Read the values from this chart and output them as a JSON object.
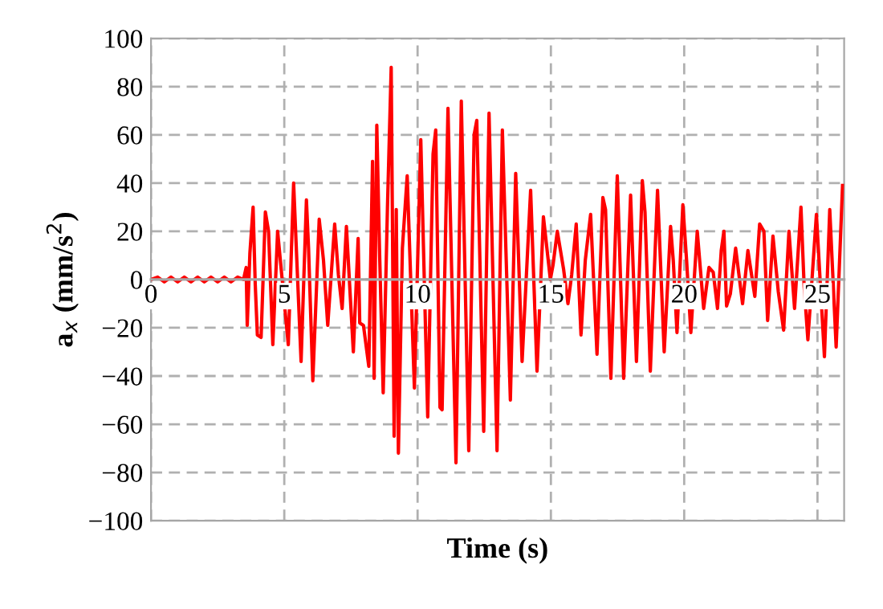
{
  "chart_data": {
    "type": "line",
    "xlabel": "Time (s)",
    "ylabel": "a$_{x}$ (mm/s$^{2}$)",
    "xlim": [
      0,
      26
    ],
    "ylim": [
      -100,
      100
    ],
    "xticks": [
      0,
      5,
      10,
      15,
      20,
      25
    ],
    "yticks": [
      {
        "value": -100,
        "label": "−100"
      },
      {
        "value": -80,
        "label": "−80"
      },
      {
        "value": -60,
        "label": "−60"
      },
      {
        "value": -40,
        "label": "−40"
      },
      {
        "value": -20,
        "label": "−20"
      },
      0,
      20,
      40,
      60,
      80,
      100
    ],
    "grid": true,
    "marker": "none",
    "line_style": "solid",
    "series": [
      {
        "color": "#ff0000",
        "x": [
          0,
          0.25,
          0.5,
          0.75,
          1.0,
          1.25,
          1.5,
          1.75,
          2.0,
          2.25,
          2.5,
          2.75,
          3.0,
          3.25,
          3.47,
          3.57,
          3.61,
          3.71,
          3.83,
          3.91,
          3.99,
          4.13,
          4.29,
          4.41,
          4.57,
          4.75,
          5.15,
          5.35,
          5.47,
          5.63,
          5.83,
          5.91,
          6.07,
          6.31,
          6.47,
          6.63,
          6.89,
          7.03,
          7.17,
          7.33,
          7.59,
          7.77,
          7.83,
          7.97,
          8.17,
          8.31,
          8.37,
          8.47,
          8.57,
          8.71,
          8.87,
          9.01,
          9.12,
          9.2,
          9.28,
          9.43,
          9.61,
          9.88,
          10.12,
          10.38,
          10.58,
          10.68,
          10.84,
          10.92,
          11.14,
          11.44,
          11.64,
          11.92,
          12.12,
          12.22,
          12.48,
          12.68,
          12.98,
          13.18,
          13.48,
          13.68,
          13.92,
          14.24,
          14.48,
          14.72,
          14.88,
          14.98,
          15.08,
          15.24,
          15.48,
          15.64,
          15.78,
          15.95,
          16.13,
          16.29,
          16.49,
          16.73,
          16.95,
          17.05,
          17.25,
          17.49,
          17.73,
          17.99,
          18.21,
          18.43,
          18.53,
          18.73,
          19.0,
          19.25,
          19.49,
          19.59,
          19.73,
          19.95,
          20.09,
          20.25,
          20.49,
          20.73,
          20.93,
          21.09,
          21.25,
          21.39,
          21.49,
          21.59,
          21.73,
          21.93,
          22.19,
          22.39,
          22.65,
          22.83,
          22.99,
          23.13,
          23.33,
          23.53,
          23.73,
          23.93,
          24.14,
          24.38,
          24.5,
          24.64,
          24.96,
          25.26,
          25.46,
          25.7,
          25.94
        ],
        "values": [
          0,
          1,
          -1,
          1,
          -1,
          1,
          -1,
          1,
          -1,
          1,
          -1,
          1,
          -1,
          1,
          0,
          5,
          -19,
          11,
          30,
          -2,
          -23,
          -24,
          28,
          20,
          -27,
          20,
          -27,
          40,
          8,
          -34,
          33,
          13,
          -42,
          25,
          8,
          -19,
          23,
          2,
          -12,
          22,
          -30,
          17,
          -18,
          -19,
          -36,
          49,
          -41,
          64,
          13,
          -47,
          30,
          88,
          -65,
          29,
          -72,
          13,
          43,
          -45,
          58,
          -57,
          52,
          62,
          -53,
          -54,
          71,
          -76,
          74,
          -71,
          60,
          66,
          -63,
          69,
          -71,
          62,
          -50,
          44,
          -34,
          37,
          -38,
          26,
          10,
          0,
          6,
          20,
          4,
          -10,
          2,
          23,
          -23,
          8,
          27,
          -31,
          34,
          29,
          -41,
          43,
          -41,
          35,
          -34,
          41,
          28,
          -38,
          37,
          -30,
          22,
          8,
          -22,
          31,
          8,
          -22,
          20,
          -12,
          5,
          3,
          -12,
          12,
          20,
          -11,
          -6,
          13,
          -10,
          12,
          -7,
          23,
          20,
          -17,
          18,
          -5,
          -21,
          20,
          -12,
          30,
          -3,
          -25,
          27,
          -32,
          29,
          -28,
          39
        ]
      }
    ]
  }
}
